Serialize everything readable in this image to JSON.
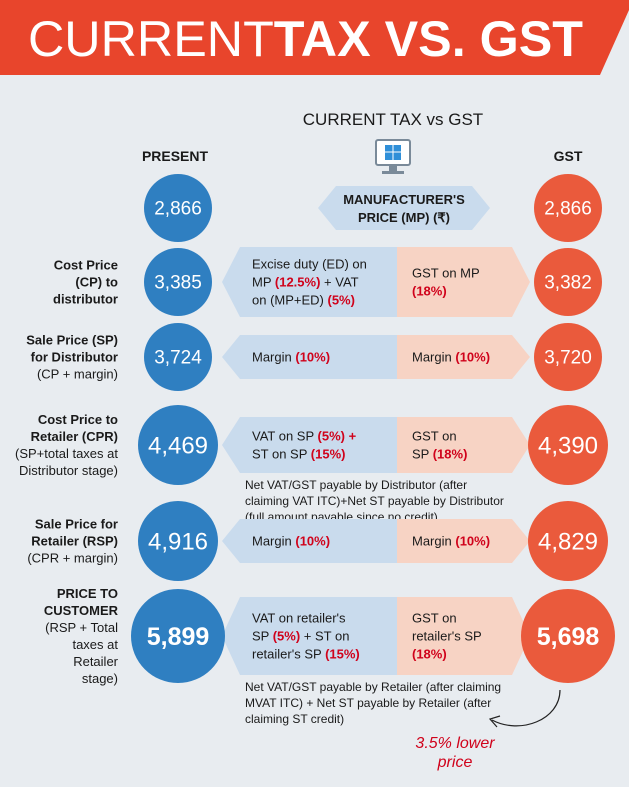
{
  "header": {
    "title_light": "CURRENT",
    "title_bold": "TAX VS. GST"
  },
  "subtitle": "CURRENT TAX vs GST",
  "columns": {
    "present": "PRESENT",
    "gst": "GST"
  },
  "rows": [
    {
      "center": [
        "MANUFACTURER'S",
        "PRICE (MP) (₹)"
      ],
      "present": "2,866",
      "gst": "2,866"
    },
    {
      "label": {
        "bold": [
          "Cost Price",
          "(CP) to",
          "distributor"
        ],
        "normal": []
      },
      "present": "3,385",
      "gst": "3,382",
      "left": [
        [
          {
            "text": "Excise duty (ED) on"
          }
        ],
        [
          {
            "text": "MP "
          },
          {
            "text": "(12.5%)",
            "color": "#d0021b"
          },
          {
            "text": " + VAT"
          }
        ],
        [
          {
            "text": "on (MP+ED) "
          },
          {
            "text": "(5%)",
            "color": "#d0021b"
          }
        ]
      ],
      "right": [
        [
          {
            "text": "GST on MP"
          }
        ],
        [
          {
            "text": "(18%)",
            "color": "#d0021b"
          }
        ]
      ]
    },
    {
      "label": {
        "bold": [
          "Sale Price (SP)",
          "for Distributor"
        ],
        "normal": [
          "(CP + margin)"
        ]
      },
      "present": "3,724",
      "gst": "3,720",
      "left": [
        [
          {
            "text": "Margin "
          },
          {
            "text": "(10%)",
            "color": "#d0021b"
          }
        ]
      ],
      "right": [
        [
          {
            "text": "Margin "
          },
          {
            "text": "(10%)",
            "color": "#d0021b"
          }
        ]
      ]
    },
    {
      "label": {
        "bold": [
          "Cost Price to",
          "Retailer (CPR)"
        ],
        "normal": [
          "(SP+total taxes at",
          "Distributor stage)"
        ]
      },
      "present": "4,469",
      "gst": "4,390",
      "left": [
        [
          {
            "text": "VAT on SP "
          },
          {
            "text": "(5%) +",
            "color": "#d0021b"
          }
        ],
        [
          {
            "text": "ST on SP "
          },
          {
            "text": "(15%)",
            "color": "#d0021b"
          }
        ]
      ],
      "right": [
        [
          {
            "text": "GST on"
          }
        ],
        [
          {
            "text": "SP "
          },
          {
            "text": "(18%)",
            "color": "#d0021b"
          }
        ]
      ],
      "note": [
        "Net VAT/GST payable by Distributor (after",
        "claiming VAT ITC)+Net ST payable by Distributor",
        "(full amount payable since no credit)"
      ]
    },
    {
      "label": {
        "bold": [
          "Sale Price for",
          "Retailer (RSP)"
        ],
        "normal": [
          "(CPR + margin)"
        ]
      },
      "present": "4,916",
      "gst": "4,829",
      "left": [
        [
          {
            "text": "Margin "
          },
          {
            "text": "(10%)",
            "color": "#d0021b"
          }
        ]
      ],
      "right": [
        [
          {
            "text": "Margin "
          },
          {
            "text": "(10%)",
            "color": "#d0021b"
          }
        ]
      ]
    },
    {
      "label": {
        "bold": [
          "PRICE TO",
          "CUSTOMER"
        ],
        "normal": [
          "(RSP + Total",
          "taxes at",
          "Retailer",
          "stage)"
        ]
      },
      "present": "5,899",
      "gst": "5,698",
      "left": [
        [
          {
            "text": "VAT on retailer's"
          }
        ],
        [
          {
            "text": "SP "
          },
          {
            "text": "(5%)",
            "color": "#d0021b"
          },
          {
            "text": " + ST on"
          }
        ],
        [
          {
            "text": "retailer's SP "
          },
          {
            "text": "(15%)",
            "color": "#d0021b"
          }
        ]
      ],
      "right": [
        [
          {
            "text": "GST on"
          }
        ],
        [
          {
            "text": "retailer's SP"
          }
        ],
        [
          {
            "text": "(18%)",
            "color": "#d0021b"
          }
        ]
      ],
      "note": [
        "Net VAT/GST payable by Retailer (after claiming",
        "MVAT ITC) + Net ST payable by Retailer (after",
        "claiming ST credit)"
      ]
    }
  ],
  "footnote": [
    "3.5% lower",
    "price"
  ]
}
